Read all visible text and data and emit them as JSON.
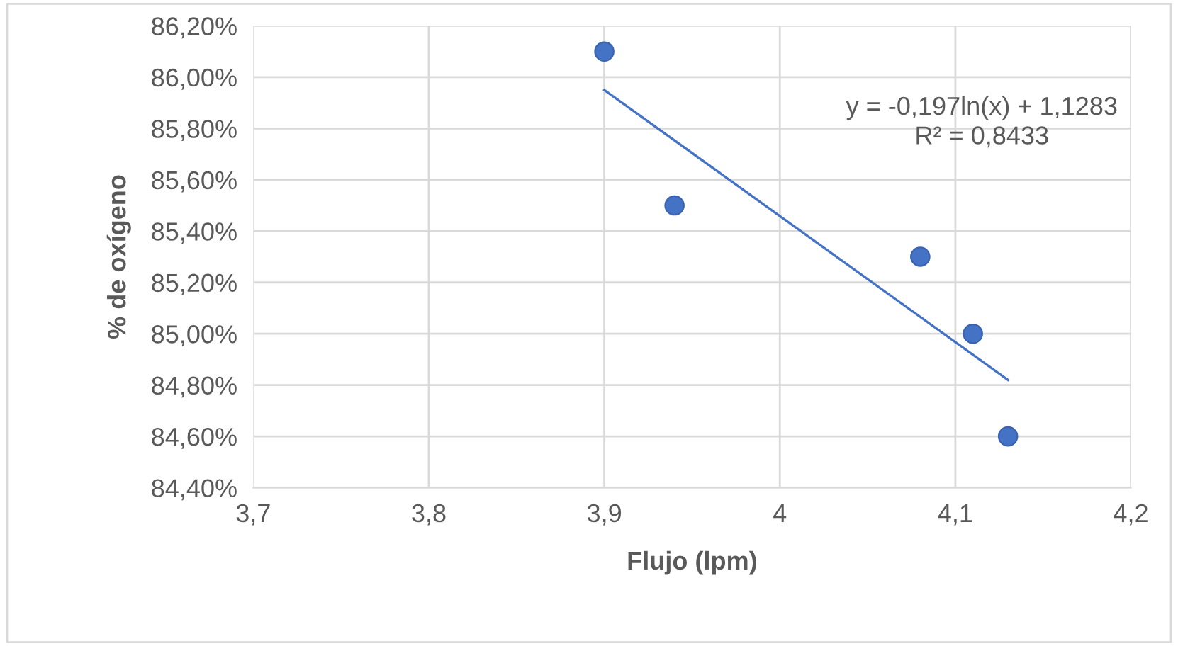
{
  "chart_data": {
    "type": "scatter",
    "xlabel": "Flujo (lpm)",
    "ylabel": "% de oxígeno",
    "series": [
      {
        "color": "#4472c4",
        "marker": "circle",
        "x": [
          3.9,
          3.94,
          4.08,
          4.11,
          4.13
        ],
        "values": [
          86.1,
          85.5,
          85.3,
          85.0,
          84.6
        ]
      },
      {
        "type": "line",
        "color": "#4472c4",
        "marker": "none",
        "line_style": "solid",
        "x": [
          3.9,
          4.13
        ],
        "values": [
          85.95,
          84.82
        ]
      }
    ],
    "annotations": [
      "y = -0,197ln(x) + 1,1283\nR² = 0,8433"
    ],
    "xlim": [
      3.7,
      4.2
    ],
    "xticks": [
      {
        "value": 3.7,
        "label": "3,7"
      },
      {
        "value": 3.8,
        "label": "3,8"
      },
      {
        "value": 3.9,
        "label": "3,9"
      },
      4,
      {
        "value": 4.1,
        "label": "4,1"
      },
      {
        "value": 4.2,
        "label": "4,2"
      }
    ],
    "ylim": [
      84.4,
      86.2
    ],
    "yticks": [
      {
        "value": 84.4,
        "label": "84,40%"
      },
      {
        "value": 84.6,
        "label": "84,60%"
      },
      {
        "value": 84.8,
        "label": "84,80%"
      },
      {
        "value": 85.0,
        "label": "85,00%"
      },
      {
        "value": 85.2,
        "label": "85,20%"
      },
      {
        "value": 85.4,
        "label": "85,40%"
      },
      {
        "value": 85.6,
        "label": "85,60%"
      },
      {
        "value": 85.8,
        "label": "85,80%"
      },
      {
        "value": 86.0,
        "label": "86,00%"
      },
      {
        "value": 86.2,
        "label": "86,20%"
      }
    ],
    "grid": true,
    "legend": false
  }
}
